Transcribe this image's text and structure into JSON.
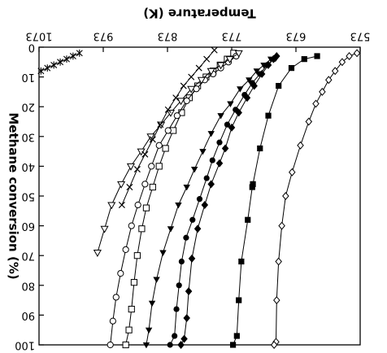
{
  "chart_data": {
    "type": "scatter",
    "title": "",
    "note": "Image is rendered rotated 180 degrees; text appears upside down.",
    "xlabel": "Temperature (K)",
    "ylabel": "Methane conversion (%)",
    "xlim": [
      573,
      1073
    ],
    "ylim": [
      0,
      100
    ],
    "x_ticks": [
      573,
      673,
      773,
      873,
      973,
      1073
    ],
    "x_tick_labels": [
      "573",
      "673",
      "773",
      "873",
      "973",
      "1073"
    ],
    "y_ticks": [
      0,
      10,
      20,
      30,
      40,
      50,
      60,
      70,
      80,
      90,
      100
    ],
    "y_tick_labels": [
      "0",
      "10",
      "20",
      "30",
      "40",
      "50",
      "60",
      "70",
      "80",
      "90",
      "100"
    ],
    "grid": false,
    "legend": "none",
    "series": [
      {
        "marker": "open-diamond",
        "color": "#000000",
        "points": [
          [
            578,
            2
          ],
          [
            590,
            3
          ],
          [
            601,
            5
          ],
          [
            612,
            8
          ],
          [
            622,
            11
          ],
          [
            632,
            15
          ],
          [
            642,
            19
          ],
          [
            653,
            25
          ],
          [
            666,
            33
          ],
          [
            679,
            42
          ],
          [
            689,
            50
          ],
          [
            695,
            60
          ],
          [
            700,
            72
          ],
          [
            703,
            85
          ],
          [
            704,
            99
          ],
          [
            707,
            100
          ]
        ]
      },
      {
        "marker": "filled-square",
        "color": "#000000",
        "points": [
          [
            640,
            3
          ],
          [
            660,
            4
          ],
          [
            680,
            7
          ],
          [
            700,
            13
          ],
          [
            716,
            23
          ],
          [
            729,
            34
          ],
          [
            740,
            46
          ],
          [
            741,
            47
          ],
          [
            748,
            58
          ],
          [
            758,
            72
          ],
          [
            762,
            85
          ],
          [
            765,
            97
          ],
          [
            771,
            100
          ]
        ]
      },
      {
        "marker": "filled-diamond",
        "color": "#000000",
        "points": [
          [
            703,
            3
          ],
          [
            708,
            4
          ],
          [
            716,
            6
          ],
          [
            726,
            9
          ],
          [
            738,
            13
          ],
          [
            749,
            17
          ],
          [
            762,
            22
          ],
          [
            773,
            27
          ],
          [
            783,
            34
          ],
          [
            792,
            39
          ],
          [
            805,
            46
          ],
          [
            815,
            53
          ],
          [
            826,
            61
          ],
          [
            835,
            71
          ],
          [
            840,
            82
          ],
          [
            843,
            91
          ],
          [
            847,
            98
          ],
          [
            852,
            100
          ]
        ]
      },
      {
        "marker": "filled-circle",
        "color": "#000000",
        "points": [
          [
            707,
            4
          ],
          [
            718,
            6
          ],
          [
            729,
            9
          ],
          [
            741,
            12
          ],
          [
            753,
            16
          ],
          [
            767,
            21
          ],
          [
            780,
            26
          ],
          [
            792,
            32
          ],
          [
            803,
            38
          ],
          [
            812,
            44
          ],
          [
            823,
            51
          ],
          [
            834,
            58
          ],
          [
            844,
            64
          ],
          [
            851,
            72
          ],
          [
            855,
            80
          ],
          [
            859,
            88
          ],
          [
            862,
            97
          ],
          [
            869,
            100
          ]
        ]
      },
      {
        "marker": "filled-triangle-down",
        "color": "#000000",
        "points": [
          [
            712,
            4
          ],
          [
            723,
            6
          ],
          [
            734,
            8
          ],
          [
            746,
            11
          ],
          [
            760,
            14
          ],
          [
            775,
            19
          ],
          [
            790,
            23
          ],
          [
            805,
            29
          ],
          [
            818,
            35
          ],
          [
            831,
            41
          ],
          [
            843,
            47
          ],
          [
            856,
            53
          ],
          [
            868,
            61
          ],
          [
            880,
            69
          ],
          [
            890,
            78
          ],
          [
            897,
            86
          ],
          [
            902,
            95
          ],
          [
            906,
            100
          ]
        ]
      },
      {
        "marker": "open-square",
        "color": "#000000",
        "points": [
          [
            770,
            2
          ],
          [
            780,
            4
          ],
          [
            791,
            6
          ],
          [
            802,
            8
          ],
          [
            813,
            10
          ],
          [
            826,
            13
          ],
          [
            839,
            17
          ],
          [
            851,
            22
          ],
          [
            864,
            28
          ],
          [
            876,
            34
          ],
          [
            886,
            40
          ],
          [
            896,
            47
          ],
          [
            906,
            54
          ],
          [
            913,
            61
          ],
          [
            920,
            70
          ],
          [
            925,
            79
          ],
          [
            929,
            88
          ],
          [
            933,
            95
          ],
          [
            938,
            100
          ]
        ]
      },
      {
        "marker": "open-circle",
        "color": "#000000",
        "points": [
          [
            766,
            3
          ],
          [
            778,
            5
          ],
          [
            790,
            7
          ],
          [
            802,
            9
          ],
          [
            815,
            11
          ],
          [
            828,
            14
          ],
          [
            843,
            18
          ],
          [
            858,
            23
          ],
          [
            872,
            28
          ],
          [
            886,
            33
          ],
          [
            898,
            40
          ],
          [
            908,
            46
          ],
          [
            919,
            53
          ],
          [
            929,
            60
          ],
          [
            938,
            68
          ],
          [
            946,
            76
          ],
          [
            953,
            84
          ],
          [
            958,
            92
          ],
          [
            962,
            100
          ]
        ]
      },
      {
        "marker": "open-triangle-down",
        "color": "#000000",
        "points": [
          [
            762,
            2
          ],
          [
            776,
            4
          ],
          [
            790,
            6
          ],
          [
            805,
            8
          ],
          [
            820,
            11
          ],
          [
            836,
            14
          ],
          [
            852,
            18
          ],
          [
            868,
            22
          ],
          [
            883,
            26
          ],
          [
            899,
            30
          ],
          [
            914,
            35
          ],
          [
            930,
            40
          ],
          [
            945,
            46
          ],
          [
            960,
            53
          ],
          [
            971,
            61
          ],
          [
            982,
            69
          ]
        ]
      },
      {
        "marker": "cross",
        "color": "#000000",
        "points": [
          [
            800,
            1
          ],
          [
            812,
            4
          ],
          [
            824,
            7
          ],
          [
            836,
            10
          ],
          [
            848,
            13
          ],
          [
            860,
            17
          ],
          [
            872,
            21
          ],
          [
            884,
            26
          ],
          [
            896,
            31
          ],
          [
            908,
            36
          ],
          [
            920,
            41
          ],
          [
            932,
            47
          ],
          [
            944,
            53
          ]
        ]
      },
      {
        "marker": "asterisk",
        "color": "#000000",
        "points": [
          [
            1010,
            2
          ],
          [
            1020,
            3
          ],
          [
            1030,
            4
          ],
          [
            1040,
            5
          ],
          [
            1050,
            6
          ],
          [
            1060,
            7
          ],
          [
            1070,
            8
          ]
        ]
      }
    ]
  }
}
